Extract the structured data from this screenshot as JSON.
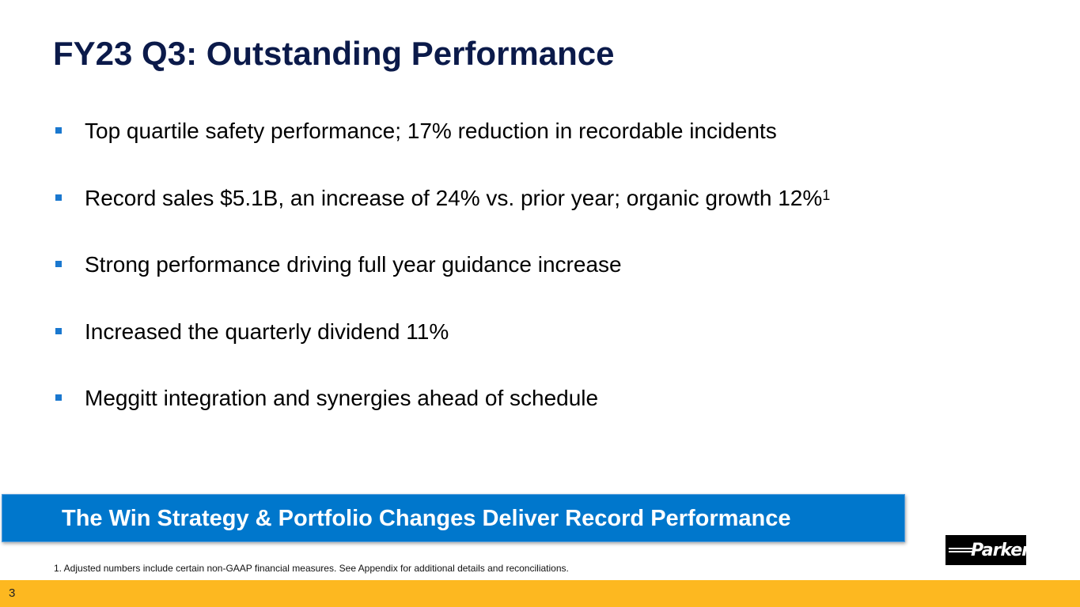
{
  "slide": {
    "title": "FY23 Q3: Outstanding Performance",
    "bullets": [
      {
        "text": "Top quartile safety performance; 17% reduction in recordable incidents",
        "superscript": ""
      },
      {
        "text": "Record sales $5.1B, an increase of 24% vs. prior year; organic growth 12%",
        "superscript": "1"
      },
      {
        "text": "Strong performance driving full year guidance increase",
        "superscript": ""
      },
      {
        "text": "Increased the quarterly dividend 11%",
        "superscript": ""
      },
      {
        "text": "Meggitt integration and synergies ahead of schedule",
        "superscript": ""
      }
    ],
    "banner": "The Win Strategy & Portfolio Changes Deliver Record Performance",
    "footnote": "1. Adjusted numbers include certain non-GAAP financial measures. See Appendix for additional details and reconciliations.",
    "logo_text": "Parker",
    "page_number": "3"
  },
  "colors": {
    "title": "#0b1a4a",
    "bullet_marker": "#1a78cf",
    "banner_bg": "#0077cc",
    "footer_bar": "#fdb820",
    "logo_bg": "#000000"
  }
}
